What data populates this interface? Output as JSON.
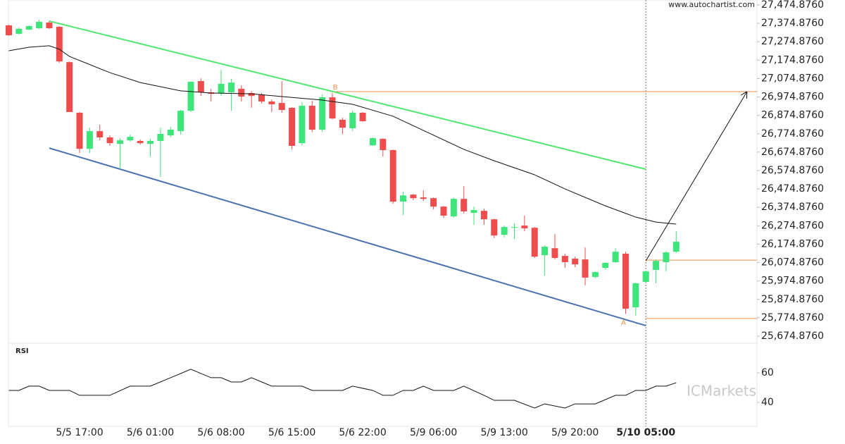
{
  "chart_data": {
    "type": "candlestick",
    "site": "www.autochartist.com",
    "watermark": "ICMarkets",
    "categories": [
      null,
      null,
      null,
      null,
      null,
      null,
      null,
      "5/5 17:00",
      null,
      null,
      null,
      null,
      null,
      null,
      "5/6 01:00",
      null,
      null,
      null,
      null,
      null,
      null,
      "5/6 08:00",
      null,
      null,
      null,
      null,
      null,
      null,
      "5/6 15:00",
      null,
      null,
      null,
      null,
      null,
      null,
      "5/6 22:00",
      null,
      null,
      null,
      null,
      null,
      null,
      "5/9 06:00",
      null,
      null,
      null,
      null,
      null,
      null,
      "5/9 13:00",
      null,
      null,
      null,
      null,
      null,
      null,
      "5/9 20:00",
      null,
      null,
      null,
      null,
      null,
      null,
      "5/10 05:00",
      null,
      null,
      null
    ],
    "open": [
      27364,
      27318,
      27341,
      27348,
      27379,
      27356,
      27164,
      26889,
      26693,
      26789,
      26755,
      26720,
      26739,
      26736,
      26720,
      26736,
      26766,
      26789,
      26900,
      27061,
      27000,
      26996,
      27000,
      27019,
      26996,
      26988,
      26950,
      26942,
      26916,
      26724,
      26927,
      26797,
      26973,
      26851,
      26805,
      26889,
      26712,
      26747,
      26686,
      26406,
      26444,
      26429,
      26425,
      26379,
      26326,
      26421,
      26345,
      26356,
      26310,
      26226,
      26264,
      26276,
      26264,
      26115,
      26153,
      26111,
      26096,
      26092,
      25997,
      26046,
      26077,
      26123,
      25832,
      25970,
      26035,
      26077,
      26134
    ],
    "high": [
      27368,
      27352,
      27364,
      27394,
      27387,
      27360,
      27168,
      26893,
      26808,
      26824,
      26766,
      26751,
      26770,
      26743,
      26747,
      26808,
      26812,
      26904,
      27060,
      27076,
      27019,
      27122,
      27073,
      27038,
      27007,
      26996,
      26961,
      27061,
      26919,
      26946,
      26954,
      26988,
      26996,
      26862,
      26900,
      26893,
      26755,
      26751,
      26690,
      26459,
      26448,
      26467,
      26429,
      26383,
      26429,
      26490,
      26379,
      26368,
      26314,
      26276,
      26287,
      26330,
      26268,
      26169,
      26230,
      26123,
      26107,
      26157,
      26027,
      26077,
      26153,
      26134,
      25966,
      26031,
      26092,
      26138,
      26246
    ],
    "low": [
      27306,
      27314,
      27337,
      27345,
      27345,
      27160,
      26893,
      26670,
      26670,
      26739,
      26709,
      26582,
      26732,
      26716,
      26651,
      26540,
      26755,
      26770,
      26893,
      26980,
      26950,
      26980,
      26900,
      26950,
      26916,
      26939,
      26893,
      26889,
      26689,
      26712,
      26785,
      26785,
      26854,
      26774,
      26789,
      26839,
      26709,
      26651,
      26395,
      26333,
      26414,
      26410,
      26364,
      26318,
      26318,
      26341,
      26280,
      26280,
      26207,
      26211,
      26203,
      26245,
      26100,
      26004,
      26092,
      26046,
      26050,
      25951,
      25989,
      26035,
      26073,
      25796,
      25786,
      25966,
      25962,
      26027,
      26127
    ],
    "close": [
      27310,
      27345,
      27360,
      27383,
      27348,
      27168,
      26893,
      26693,
      26789,
      26755,
      26724,
      26739,
      26758,
      26724,
      26736,
      26774,
      26797,
      26900,
      27057,
      27000,
      26992,
      27046,
      27053,
      26977,
      26980,
      26950,
      26935,
      26904,
      26709,
      26927,
      26797,
      26973,
      26858,
      26808,
      26889,
      26843,
      26751,
      26686,
      26406,
      26440,
      26425,
      26421,
      26379,
      26330,
      26421,
      26353,
      26360,
      26310,
      26222,
      26268,
      26268,
      26261,
      26107,
      26161,
      26100,
      26077,
      26065,
      25993,
      26023,
      26073,
      26134,
      25824,
      25962,
      26027,
      26084,
      26130,
      26188
    ],
    "up_color": "#3ee57a",
    "down_color": "#ef4d4d",
    "ylim": [
      25636.6,
      27501.7
    ],
    "yticks": [
      {
        "value": 27474.876,
        "label": "27,474.8760"
      },
      {
        "value": 27374.876,
        "label": "27,374.8760"
      },
      {
        "value": 27274.876,
        "label": "27,274.8760"
      },
      {
        "value": 27174.876,
        "label": "27,174.8760"
      },
      {
        "value": 27074.876,
        "label": "27,074.8760"
      },
      {
        "value": 26974.876,
        "label": "26,974.8760"
      },
      {
        "value": 26874.876,
        "label": "26,874.8760"
      },
      {
        "value": 26774.876,
        "label": "26,774.8760"
      },
      {
        "value": 26674.876,
        "label": "26,674.8760"
      },
      {
        "value": 26574.876,
        "label": "26,574.8760"
      },
      {
        "value": 26474.876,
        "label": "26,474.8760"
      },
      {
        "value": 26374.876,
        "label": "26,374.8760"
      },
      {
        "value": 26274.876,
        "label": "26,274.8760"
      },
      {
        "value": 26174.876,
        "label": "26,174.8760"
      },
      {
        "value": 26074.876,
        "label": "26,074.8760"
      },
      {
        "value": 25974.876,
        "label": "25,974.8760"
      },
      {
        "value": 25874.876,
        "label": "25,874.8760"
      },
      {
        "value": 25774.876,
        "label": "25,774.8760"
      },
      {
        "value": 25674.876,
        "label": "25,674.8760"
      }
    ],
    "moving_average": {
      "color": "#111111",
      "x": [
        0,
        2,
        4,
        5,
        6,
        10,
        13,
        17,
        20,
        24,
        27,
        31,
        34,
        38,
        41,
        45,
        48,
        52,
        55,
        59,
        62,
        64,
        66
      ],
      "values": [
        27226,
        27245,
        27253,
        27234,
        27195,
        27107,
        27053,
        27008,
        26996,
        26992,
        26977,
        26958,
        26935,
        26870,
        26793,
        26690,
        26628,
        26552,
        26475,
        26383,
        26322,
        26295,
        26284
      ]
    },
    "trendlines": [
      {
        "color": "#4ce86a",
        "x": [
          4,
          63
        ],
        "values": [
          27387,
          26582
        ]
      },
      {
        "color": "#4a72b0",
        "x": [
          4,
          63
        ],
        "values": [
          26697,
          25732
        ]
      }
    ],
    "levels": [
      {
        "color": "#e8904a",
        "x": 32,
        "value": 27004
      },
      {
        "color": "#e8904a",
        "x": 63,
        "value": 26088
      },
      {
        "color": "#e8904a",
        "x": 63,
        "value": 25771
      }
    ],
    "arrow": {
      "color": "#111111",
      "x": [
        63,
        73
      ],
      "values": [
        26084,
        27004
      ]
    },
    "points": [
      {
        "label": "A",
        "x": 61,
        "value": 25771
      },
      {
        "label": "B",
        "x": 32,
        "value": 27004
      }
    ],
    "marker_x": 63,
    "indicator": {
      "title": "RSI",
      "color": "#111111",
      "ylim": [
        23.8,
        80
      ],
      "yticks": [
        60,
        40
      ],
      "x": [
        0,
        1,
        2,
        3,
        4,
        6,
        7,
        10,
        12,
        14,
        16,
        18,
        20,
        21,
        22,
        23,
        24,
        26,
        29,
        30,
        33,
        34,
        36,
        37,
        38,
        39,
        40,
        41,
        42,
        44,
        45,
        47,
        48,
        50,
        52,
        53,
        55,
        56,
        58,
        60,
        61,
        62,
        63,
        64,
        65,
        66
      ],
      "values": [
        48.1,
        48.1,
        51,
        51,
        48.1,
        48.1,
        44.8,
        44.8,
        51,
        51,
        56.7,
        62.4,
        56.7,
        56.7,
        53.8,
        53.8,
        56.7,
        51,
        51,
        48.1,
        48.1,
        51,
        48.1,
        44.8,
        44.8,
        48.1,
        48.1,
        51,
        48.1,
        48.1,
        51,
        44.8,
        41.4,
        41.4,
        36.2,
        39,
        36.2,
        39,
        39,
        44.8,
        44.8,
        48.1,
        48.1,
        51,
        51,
        53.3
      ]
    }
  }
}
